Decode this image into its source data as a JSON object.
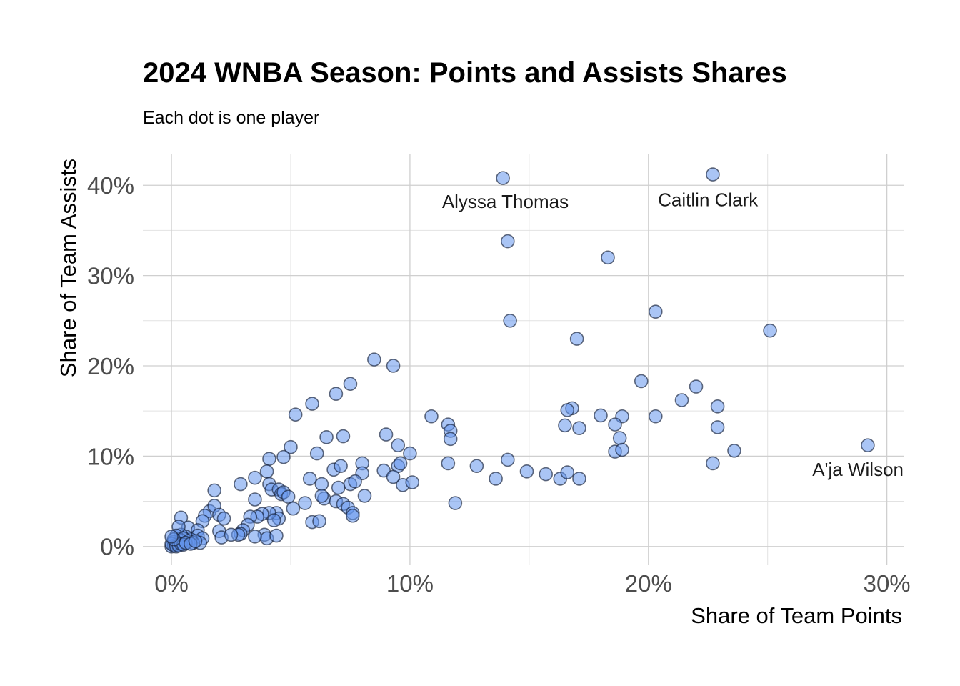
{
  "chart_data": {
    "type": "scatter",
    "title": "2024 WNBA Season: Points and Assists Shares",
    "subtitle": "Each dot is one player",
    "xlabel": "Share of Team Points",
    "ylabel": "Share of Team Assists",
    "xlim": [
      -0.012,
      0.307
    ],
    "ylim": [
      -0.02,
      0.435
    ],
    "x_ticks": [
      0,
      0.1,
      0.2,
      0.3
    ],
    "x_tick_labels": [
      "0%",
      "10%",
      "20%",
      "30%"
    ],
    "y_ticks": [
      0,
      0.1,
      0.2,
      0.3,
      0.4
    ],
    "y_tick_labels": [
      "0%",
      "10%",
      "20%",
      "30%",
      "40%"
    ],
    "grid": true,
    "annotations": [
      {
        "text": "Alyssa Thomas",
        "x": 0.14,
        "y": 0.375,
        "anchor": "middle"
      },
      {
        "text": "Caitlin Clark",
        "x": 0.225,
        "y": 0.377,
        "anchor": "middle"
      },
      {
        "text": "A'ja Wilson",
        "x": 0.307,
        "y": 0.078,
        "anchor": "end"
      }
    ],
    "series": [
      {
        "point_color": "#6495ED",
        "points": [
          [
            0.139,
            0.408
          ],
          [
            0.227,
            0.412
          ],
          [
            0.141,
            0.338
          ],
          [
            0.183,
            0.32
          ],
          [
            0.142,
            0.25
          ],
          [
            0.203,
            0.26
          ],
          [
            0.17,
            0.23
          ],
          [
            0.251,
            0.239
          ],
          [
            0.085,
            0.207
          ],
          [
            0.093,
            0.2
          ],
          [
            0.075,
            0.18
          ],
          [
            0.069,
            0.169
          ],
          [
            0.059,
            0.158
          ],
          [
            0.052,
            0.146
          ],
          [
            0.197,
            0.183
          ],
          [
            0.22,
            0.177
          ],
          [
            0.214,
            0.162
          ],
          [
            0.229,
            0.155
          ],
          [
            0.109,
            0.144
          ],
          [
            0.168,
            0.153
          ],
          [
            0.166,
            0.151
          ],
          [
            0.18,
            0.145
          ],
          [
            0.189,
            0.144
          ],
          [
            0.203,
            0.144
          ],
          [
            0.116,
            0.135
          ],
          [
            0.117,
            0.128
          ],
          [
            0.117,
            0.119
          ],
          [
            0.165,
            0.134
          ],
          [
            0.171,
            0.131
          ],
          [
            0.186,
            0.135
          ],
          [
            0.229,
            0.132
          ],
          [
            0.188,
            0.12
          ],
          [
            0.186,
            0.105
          ],
          [
            0.189,
            0.107
          ],
          [
            0.236,
            0.106
          ],
          [
            0.292,
            0.112
          ],
          [
            0.227,
            0.092
          ],
          [
            0.09,
            0.124
          ],
          [
            0.095,
            0.112
          ],
          [
            0.1,
            0.103
          ],
          [
            0.065,
            0.121
          ],
          [
            0.072,
            0.122
          ],
          [
            0.05,
            0.11
          ],
          [
            0.061,
            0.103
          ],
          [
            0.041,
            0.097
          ],
          [
            0.047,
            0.099
          ],
          [
            0.141,
            0.096
          ],
          [
            0.116,
            0.092
          ],
          [
            0.128,
            0.089
          ],
          [
            0.149,
            0.083
          ],
          [
            0.157,
            0.08
          ],
          [
            0.163,
            0.075
          ],
          [
            0.166,
            0.082
          ],
          [
            0.171,
            0.075
          ],
          [
            0.136,
            0.075
          ],
          [
            0.095,
            0.089
          ],
          [
            0.096,
            0.092
          ],
          [
            0.089,
            0.084
          ],
          [
            0.093,
            0.077
          ],
          [
            0.097,
            0.068
          ],
          [
            0.101,
            0.071
          ],
          [
            0.08,
            0.092
          ],
          [
            0.08,
            0.081
          ],
          [
            0.058,
            0.075
          ],
          [
            0.063,
            0.069
          ],
          [
            0.068,
            0.085
          ],
          [
            0.071,
            0.089
          ],
          [
            0.075,
            0.069
          ],
          [
            0.077,
            0.072
          ],
          [
            0.064,
            0.053
          ],
          [
            0.063,
            0.056
          ],
          [
            0.069,
            0.05
          ],
          [
            0.07,
            0.065
          ],
          [
            0.072,
            0.047
          ],
          [
            0.074,
            0.043
          ],
          [
            0.076,
            0.037
          ],
          [
            0.076,
            0.034
          ],
          [
            0.081,
            0.056
          ],
          [
            0.119,
            0.048
          ],
          [
            0.04,
            0.083
          ],
          [
            0.041,
            0.069
          ],
          [
            0.042,
            0.063
          ],
          [
            0.035,
            0.076
          ],
          [
            0.045,
            0.063
          ],
          [
            0.046,
            0.058
          ],
          [
            0.047,
            0.06
          ],
          [
            0.049,
            0.055
          ],
          [
            0.056,
            0.048
          ],
          [
            0.051,
            0.042
          ],
          [
            0.029,
            0.069
          ],
          [
            0.018,
            0.062
          ],
          [
            0.035,
            0.052
          ],
          [
            0.044,
            0.037
          ],
          [
            0.045,
            0.031
          ],
          [
            0.041,
            0.037
          ],
          [
            0.043,
            0.029
          ],
          [
            0.059,
            0.027
          ],
          [
            0.062,
            0.028
          ],
          [
            0.038,
            0.036
          ],
          [
            0.036,
            0.033
          ],
          [
            0.033,
            0.033
          ],
          [
            0.032,
            0.024
          ],
          [
            0.03,
            0.018
          ],
          [
            0.029,
            0.014
          ],
          [
            0.028,
            0.013
          ],
          [
            0.039,
            0.013
          ],
          [
            0.04,
            0.009
          ],
          [
            0.044,
            0.012
          ],
          [
            0.035,
            0.011
          ],
          [
            0.016,
            0.039
          ],
          [
            0.018,
            0.045
          ],
          [
            0.02,
            0.035
          ],
          [
            0.022,
            0.031
          ],
          [
            0.014,
            0.034
          ],
          [
            0.013,
            0.028
          ],
          [
            0.02,
            0.017
          ],
          [
            0.021,
            0.01
          ],
          [
            0.025,
            0.013
          ],
          [
            0.004,
            0.032
          ],
          [
            0.007,
            0.021
          ],
          [
            0.011,
            0.018
          ],
          [
            0.011,
            0.012
          ],
          [
            0.013,
            0.009
          ],
          [
            0.012,
            0.004
          ],
          [
            0.008,
            0.008
          ],
          [
            0.006,
            0.011
          ],
          [
            0.004,
            0.013
          ],
          [
            0.003,
            0.022
          ],
          [
            0.002,
            0.012
          ],
          [
            0.004,
            0.007
          ],
          [
            0.005,
            0.009
          ],
          [
            0.007,
            0.006
          ],
          [
            0.009,
            0.004
          ],
          [
            0.003,
            0.003
          ],
          [
            0.001,
            0.005
          ],
          [
            0.0,
            0.0
          ],
          [
            0.001,
            0.001
          ],
          [
            0.002,
            0.002
          ],
          [
            0.0,
            0.003
          ],
          [
            0.002,
            0.0
          ],
          [
            0.003,
            0.001
          ],
          [
            0.004,
            0.003
          ],
          [
            0.005,
            0.002
          ],
          [
            0.001,
            0.008
          ],
          [
            0.006,
            0.004
          ],
          [
            0.0,
            0.011
          ],
          [
            0.008,
            0.003
          ],
          [
            0.01,
            0.006
          ]
        ]
      }
    ]
  }
}
